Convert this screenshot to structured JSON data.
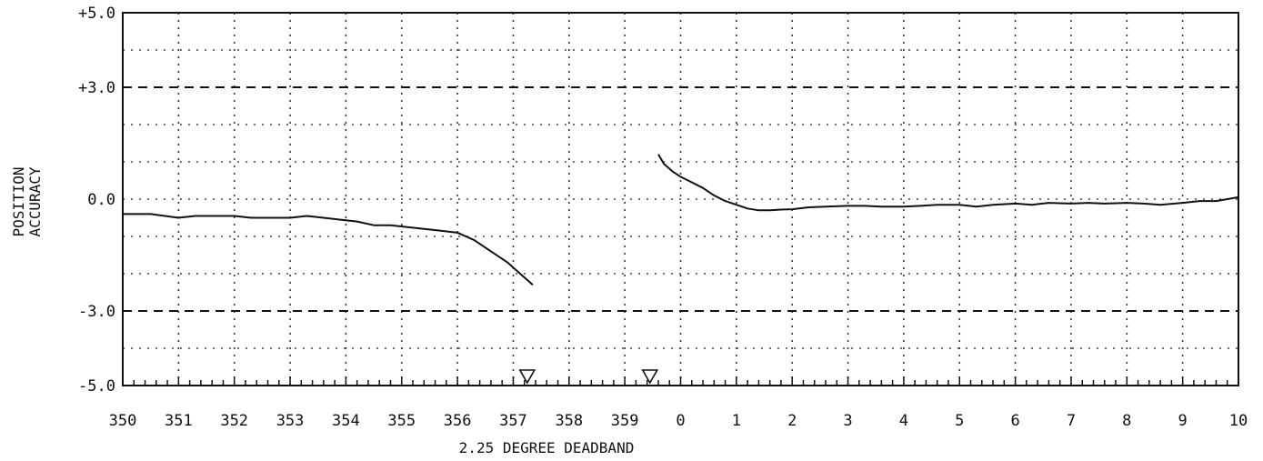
{
  "chart_data": {
    "type": "line",
    "ylabel_line1": "POSITION",
    "ylabel_line2": "ACCURACY",
    "xlabel": "2.25 DEGREE DEADBAND",
    "xlim": [
      350,
      370
    ],
    "ylim": [
      -5,
      5
    ],
    "x_tick_labels": [
      "350",
      "351",
      "352",
      "353",
      "354",
      "355",
      "356",
      "357",
      "358",
      "359",
      "0",
      "1",
      "2",
      "3",
      "4",
      "5",
      "6",
      "7",
      "8",
      "9",
      "10"
    ],
    "y_tick_labels": [
      {
        "value": 5,
        "label": "+5.0"
      },
      {
        "value": 3,
        "label": "+3.0"
      },
      {
        "value": 0,
        "label": "0.0"
      },
      {
        "value": -3,
        "label": "-3.0"
      },
      {
        "value": -5,
        "label": "-5.0"
      }
    ],
    "limit_lines": [
      3,
      -3
    ],
    "zero_line": 0,
    "grid": true,
    "markers": [
      {
        "x": 357.25,
        "shape": "triangle-down"
      },
      {
        "x": 359.45,
        "shape": "triangle-down"
      }
    ],
    "series": [
      {
        "x": [
          350.0,
          350.5,
          351.0,
          351.3,
          351.6,
          352.0,
          352.3,
          352.6,
          353.0,
          353.3,
          353.6,
          353.9,
          354.2,
          354.5,
          354.8,
          355.1,
          355.4,
          355.7,
          356.0,
          356.3,
          356.6,
          356.9,
          357.2,
          357.35
        ],
        "values": [
          -0.4,
          -0.4,
          -0.5,
          -0.45,
          -0.45,
          -0.45,
          -0.5,
          -0.5,
          -0.5,
          -0.45,
          -0.5,
          -0.55,
          -0.6,
          -0.7,
          -0.7,
          -0.75,
          -0.8,
          -0.85,
          -0.9,
          -1.1,
          -1.4,
          -1.7,
          -2.1,
          -2.3
        ]
      },
      {
        "x": [
          359.6,
          359.7,
          359.85,
          360.0,
          360.2,
          360.4,
          360.6,
          360.8,
          361.0,
          361.2,
          361.4,
          361.6,
          361.8,
          362.0,
          362.3,
          362.6,
          363.0,
          363.3,
          363.6,
          364.0,
          364.3,
          364.6,
          365.0,
          365.3,
          365.6,
          366.0,
          366.3,
          366.6,
          367.0,
          367.3,
          367.6,
          368.0,
          368.3,
          368.6,
          369.0,
          369.3,
          369.6,
          370.0
        ],
        "values": [
          1.2,
          0.95,
          0.75,
          0.6,
          0.45,
          0.3,
          0.1,
          -0.05,
          -0.15,
          -0.25,
          -0.3,
          -0.3,
          -0.28,
          -0.27,
          -0.22,
          -0.2,
          -0.18,
          -0.18,
          -0.2,
          -0.2,
          -0.18,
          -0.15,
          -0.15,
          -0.2,
          -0.15,
          -0.12,
          -0.15,
          -0.1,
          -0.12,
          -0.1,
          -0.12,
          -0.1,
          -0.12,
          -0.15,
          -0.1,
          -0.05,
          -0.05,
          0.05
        ]
      }
    ]
  }
}
